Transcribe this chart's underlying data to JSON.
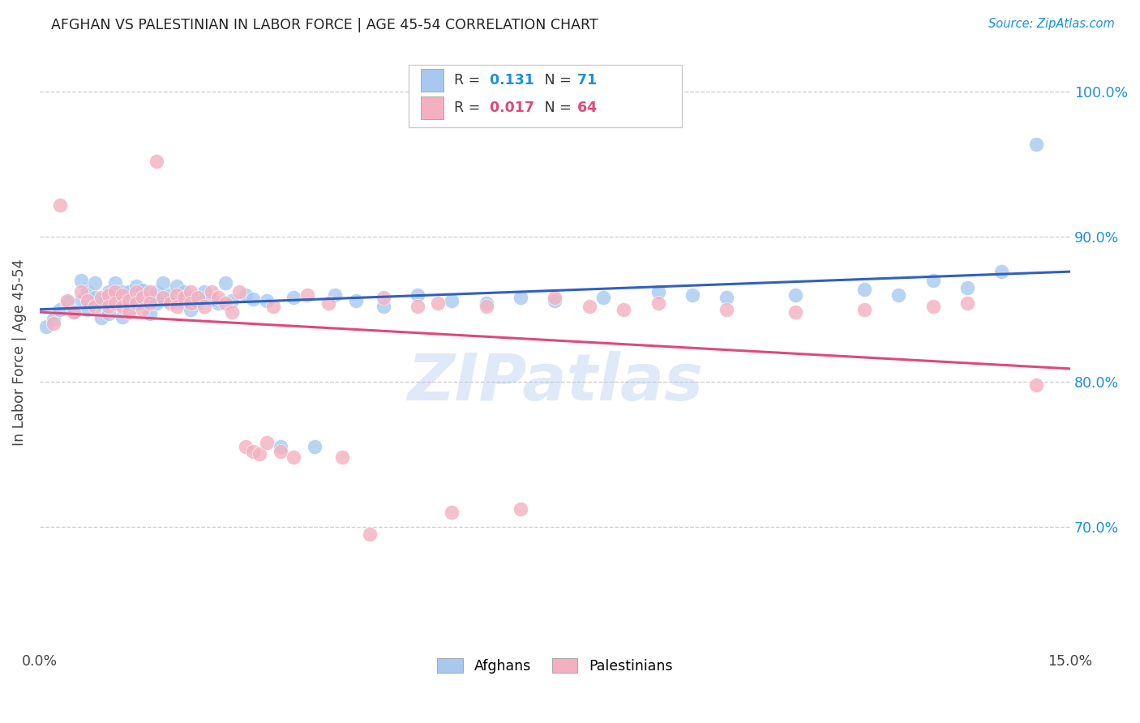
{
  "title": "AFGHAN VS PALESTINIAN IN LABOR FORCE | AGE 45-54 CORRELATION CHART",
  "source": "Source: ZipAtlas.com",
  "ylabel": "In Labor Force | Age 45-54",
  "ytick_labels": [
    "100.0%",
    "90.0%",
    "80.0%",
    "70.0%"
  ],
  "ytick_values": [
    1.0,
    0.9,
    0.8,
    0.7
  ],
  "xtick_labels": [
    "0.0%",
    "15.0%"
  ],
  "xtick_values": [
    0.0,
    0.15
  ],
  "xlim": [
    0.0,
    0.15
  ],
  "ylim": [
    0.615,
    1.025
  ],
  "afghan_color": "#A8C8F0",
  "palestinian_color": "#F4B0C0",
  "afghan_R": "0.131",
  "afghan_N": "71",
  "palestinian_R": "0.017",
  "palestinian_N": "64",
  "afghan_line_color": "#3060C0",
  "palestinian_line_color": "#E04878",
  "watermark": "ZIPatlas",
  "legend_label_afghan": "Afghans",
  "legend_label_palestinian": "Palestinians",
  "afghan_x": [
    0.001,
    0.002,
    0.003,
    0.004,
    0.005,
    0.006,
    0.006,
    0.007,
    0.007,
    0.008,
    0.008,
    0.009,
    0.009,
    0.01,
    0.01,
    0.01,
    0.011,
    0.011,
    0.012,
    0.012,
    0.012,
    0.013,
    0.013,
    0.013,
    0.014,
    0.014,
    0.015,
    0.015,
    0.016,
    0.016,
    0.017,
    0.017,
    0.018,
    0.018,
    0.019,
    0.02,
    0.02,
    0.021,
    0.022,
    0.022,
    0.023,
    0.024,
    0.025,
    0.026,
    0.027,
    0.028,
    0.03,
    0.031,
    0.033,
    0.035,
    0.037,
    0.04,
    0.043,
    0.046,
    0.05,
    0.055,
    0.06,
    0.065,
    0.07,
    0.075,
    0.082,
    0.09,
    0.095,
    0.1,
    0.11,
    0.12,
    0.125,
    0.13,
    0.135,
    0.14,
    0.145
  ],
  "afghan_y": [
    0.838,
    0.843,
    0.85,
    0.855,
    0.848,
    0.87,
    0.856,
    0.862,
    0.85,
    0.868,
    0.858,
    0.854,
    0.844,
    0.862,
    0.855,
    0.847,
    0.868,
    0.856,
    0.862,
    0.854,
    0.845,
    0.862,
    0.857,
    0.848,
    0.866,
    0.856,
    0.863,
    0.855,
    0.858,
    0.847,
    0.862,
    0.854,
    0.868,
    0.857,
    0.86,
    0.866,
    0.855,
    0.862,
    0.858,
    0.85,
    0.855,
    0.862,
    0.857,
    0.854,
    0.868,
    0.856,
    0.86,
    0.857,
    0.856,
    0.755,
    0.858,
    0.755,
    0.86,
    0.856,
    0.852,
    0.86,
    0.856,
    0.854,
    0.858,
    0.856,
    0.858,
    0.862,
    0.86,
    0.858,
    0.86,
    0.864,
    0.86,
    0.87,
    0.865,
    0.876,
    0.964
  ],
  "palestinian_x": [
    0.002,
    0.003,
    0.004,
    0.005,
    0.006,
    0.007,
    0.008,
    0.009,
    0.01,
    0.01,
    0.011,
    0.011,
    0.012,
    0.012,
    0.013,
    0.013,
    0.014,
    0.014,
    0.015,
    0.015,
    0.016,
    0.016,
    0.017,
    0.018,
    0.019,
    0.02,
    0.02,
    0.021,
    0.022,
    0.022,
    0.023,
    0.024,
    0.025,
    0.026,
    0.027,
    0.028,
    0.029,
    0.03,
    0.031,
    0.032,
    0.033,
    0.034,
    0.035,
    0.037,
    0.039,
    0.042,
    0.044,
    0.048,
    0.05,
    0.055,
    0.058,
    0.06,
    0.065,
    0.07,
    0.075,
    0.08,
    0.085,
    0.09,
    0.1,
    0.11,
    0.12,
    0.13,
    0.135,
    0.145
  ],
  "palestinian_y": [
    0.84,
    0.922,
    0.856,
    0.848,
    0.862,
    0.856,
    0.852,
    0.858,
    0.86,
    0.852,
    0.862,
    0.854,
    0.86,
    0.852,
    0.856,
    0.848,
    0.862,
    0.854,
    0.858,
    0.85,
    0.862,
    0.854,
    0.952,
    0.858,
    0.854,
    0.86,
    0.852,
    0.858,
    0.862,
    0.854,
    0.858,
    0.852,
    0.862,
    0.858,
    0.854,
    0.848,
    0.862,
    0.755,
    0.752,
    0.75,
    0.758,
    0.852,
    0.752,
    0.748,
    0.86,
    0.854,
    0.748,
    0.695,
    0.858,
    0.852,
    0.854,
    0.71,
    0.852,
    0.712,
    0.858,
    0.852,
    0.85,
    0.854,
    0.85,
    0.848,
    0.85,
    0.852,
    0.854,
    0.798
  ]
}
